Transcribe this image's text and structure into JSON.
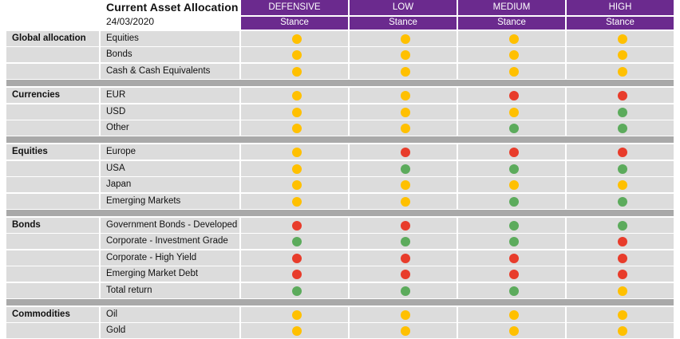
{
  "header": {
    "title": "Current Asset Allocation",
    "date": "24/03/2020",
    "columns": [
      "DEFENSIVE",
      "LOW",
      "MEDIUM",
      "HIGH"
    ],
    "subheader": "Stance"
  },
  "colors": {
    "yellow": "#ffc000",
    "green": "#5cab5c",
    "red": "#e83c2b",
    "header_bg": "#6b2a8e",
    "row_bg": "#dcdcdc",
    "separator": "#a9a9a9"
  },
  "sections": [
    {
      "name": "Global allocation",
      "rows": [
        {
          "label": "Equities",
          "stances": [
            "yellow",
            "yellow",
            "yellow",
            "yellow"
          ]
        },
        {
          "label": "Bonds",
          "stances": [
            "yellow",
            "yellow",
            "yellow",
            "yellow"
          ]
        },
        {
          "label": "Cash & Cash Equivalents",
          "stances": [
            "yellow",
            "yellow",
            "yellow",
            "yellow"
          ]
        }
      ]
    },
    {
      "name": "Currencies",
      "rows": [
        {
          "label": "EUR",
          "stances": [
            "yellow",
            "yellow",
            "red",
            "red"
          ]
        },
        {
          "label": "USD",
          "stances": [
            "yellow",
            "yellow",
            "yellow",
            "green"
          ]
        },
        {
          "label": "Other",
          "stances": [
            "yellow",
            "yellow",
            "green",
            "green"
          ]
        }
      ]
    },
    {
      "name": "Equities",
      "rows": [
        {
          "label": "Europe",
          "stances": [
            "yellow",
            "red",
            "red",
            "red"
          ]
        },
        {
          "label": "USA",
          "stances": [
            "yellow",
            "green",
            "green",
            "green"
          ]
        },
        {
          "label": "Japan",
          "stances": [
            "yellow",
            "yellow",
            "yellow",
            "yellow"
          ]
        },
        {
          "label": "Emerging Markets",
          "stances": [
            "yellow",
            "yellow",
            "green",
            "green"
          ]
        }
      ]
    },
    {
      "name": "Bonds",
      "rows": [
        {
          "label": "Government Bonds - Developed",
          "stances": [
            "red",
            "red",
            "green",
            "green"
          ]
        },
        {
          "label": "Corporate - Investment Grade",
          "stances": [
            "green",
            "green",
            "green",
            "red"
          ]
        },
        {
          "label": "Corporate - High Yield",
          "stances": [
            "red",
            "red",
            "red",
            "red"
          ]
        },
        {
          "label": "Emerging Market Debt",
          "stances": [
            "red",
            "red",
            "red",
            "red"
          ]
        },
        {
          "label": "Total return",
          "stances": [
            "green",
            "green",
            "green",
            "yellow"
          ]
        }
      ]
    },
    {
      "name": "Commodities",
      "rows": [
        {
          "label": "Oil",
          "stances": [
            "yellow",
            "yellow",
            "yellow",
            "yellow"
          ]
        },
        {
          "label": "Gold",
          "stances": [
            "yellow",
            "yellow",
            "yellow",
            "yellow"
          ]
        }
      ]
    }
  ]
}
